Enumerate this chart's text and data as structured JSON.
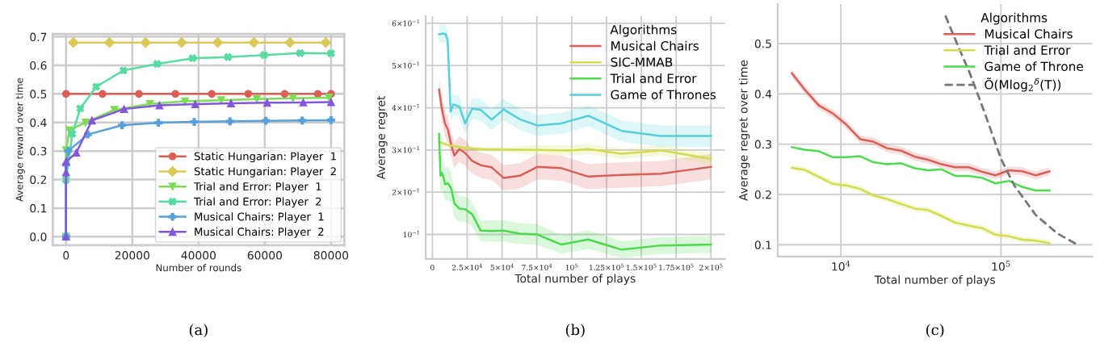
{
  "chart_data": [
    {
      "type": "line",
      "xlabel": "Number of rounds",
      "ylabel": "Average reward over time",
      "annotations": [
        "(a)"
      ],
      "xlim": [
        -4000,
        84000
      ],
      "ylim": [
        -0.03,
        0.71
      ],
      "xticks": [
        0,
        20000,
        40000,
        60000,
        80000
      ],
      "yticks": [
        {
          "value": 0,
          "label": "0.0"
        },
        0.1,
        0.2,
        0.3,
        0.4,
        0.5,
        0.6,
        0.7
      ],
      "grid": true,
      "legend": "lower right",
      "series": [
        {
          "name": "Static Hungarian: Player  1",
          "color": "#db5f57",
          "marker": "circle",
          "x": [
            0,
            11000,
            22000,
            33000,
            44000,
            55000,
            66000,
            76000,
            80000
          ],
          "values": [
            0.5,
            0.5,
            0.5,
            0.5,
            0.5,
            0.5,
            0.5,
            0.5,
            0.5
          ]
        },
        {
          "name": "Static Hungarian: Player  2",
          "color": "#dbc957",
          "marker": "diamond",
          "x": [
            2200,
            13100,
            24000,
            34900,
            45800,
            56700,
            67600,
            78400
          ],
          "values": [
            0.68,
            0.68,
            0.68,
            0.68,
            0.68,
            0.68,
            0.68,
            0.68
          ]
        },
        {
          "name": "Trial and Error: Player  1",
          "color": "#7ddb57",
          "marker": "triangle_down",
          "x": [
            0,
            0,
            1000,
            5900,
            14600,
            25300,
            35900,
            46800,
            57600,
            68500,
            79400
          ],
          "values": [
            0,
            0.303,
            0.373,
            0.4,
            0.444,
            0.465,
            0.474,
            0.478,
            0.482,
            0.485,
            0.487
          ]
        },
        {
          "name": "Trial and Error: Player  2",
          "color": "#57dba0",
          "marker": "cross",
          "x": [
            0,
            0,
            1900,
            4300,
            9100,
            17300,
            27500,
            38200,
            48900,
            59800,
            70700,
            80000
          ],
          "values": [
            0,
            0.199,
            0.36,
            0.449,
            0.525,
            0.582,
            0.605,
            0.625,
            0.629,
            0.636,
            0.643,
            0.642
          ]
        },
        {
          "name": "Musical Chairs: Player  1",
          "color": "#57a0db",
          "marker": "plus",
          "x": [
            0,
            0,
            650,
            6600,
            16900,
            27900,
            38700,
            49500,
            60300,
            71300,
            80000
          ],
          "values": [
            0,
            0.252,
            0.3,
            0.358,
            0.39,
            0.399,
            0.402,
            0.404,
            0.406,
            0.407,
            0.408
          ]
        },
        {
          "name": "Musical Chairs: Player  2",
          "color": "#8257db",
          "marker": "triangle",
          "x": [
            0,
            0,
            0,
            3100,
            7800,
            17500,
            28200,
            39000,
            49800,
            60700,
            71600,
            80000
          ],
          "values": [
            0,
            0.225,
            0.263,
            0.294,
            0.407,
            0.447,
            0.46,
            0.464,
            0.467,
            0.469,
            0.47,
            0.471
          ]
        }
      ]
    },
    {
      "type": "line",
      "xlabel": "Total number of plays",
      "ylabel": "Average regret",
      "legend_title": "Algorithms",
      "annotations": [
        "(b)"
      ],
      "xlim": [
        -4800,
        210000
      ],
      "ylim": [
        0.042,
        0.617
      ],
      "xticks": [
        0,
        {
          "value": 25000,
          "label": "2.5×10$^{4}$"
        },
        {
          "value": 50000,
          "label": "5×10$^{4}$"
        },
        {
          "value": 75000,
          "label": "7.5×10$^{4}$"
        },
        {
          "value": 100000,
          "label": "10$^{5}$"
        },
        {
          "value": 125000,
          "label": "1.25×10$^{5}$"
        },
        {
          "value": 150000,
          "label": "1.5×10$^{5}$"
        },
        {
          "value": 175000,
          "label": "1.75×10$^{5}$"
        },
        {
          "value": 200000,
          "label": "2×10$^{5}$"
        }
      ],
      "yticks": [
        {
          "value": 0.1,
          "label": "10$^{−1}$"
        },
        {
          "value": 0.2,
          "label": "2×10$^{−1}$"
        },
        {
          "value": 0.3,
          "label": "3×10$^{−1}$"
        },
        {
          "value": 0.4,
          "label": "4×10$^{−1}$"
        },
        {
          "value": 0.5,
          "label": "5×10$^{−1}$"
        },
        {
          "value": 0.6,
          "label": "6×10$^{−1}$"
        }
      ],
      "grid": true,
      "legend": "upper right",
      "series": [
        {
          "name": "Musical Chairs",
          "color": "#db5f57",
          "x": [
            4800,
            6800,
            9100,
            11200,
            13500,
            15800,
            19300,
            23500,
            28600,
            34700,
            42500,
            51100,
            62700,
            75300,
            92600,
            111900,
            136000,
            164000,
            200000
          ],
          "values": [
            0.443,
            0.398,
            0.362,
            0.348,
            0.312,
            0.287,
            0.302,
            0.293,
            0.274,
            0.264,
            0.259,
            0.234,
            0.239,
            0.26,
            0.257,
            0.237,
            0.241,
            0.244,
            0.26
          ],
          "lower": [
            0.413,
            0.368,
            0.332,
            0.318,
            0.282,
            0.257,
            0.272,
            0.263,
            0.244,
            0.234,
            0.229,
            0.204,
            0.209,
            0.23,
            0.227,
            0.207,
            0.211,
            0.214,
            0.23
          ],
          "upper": [
            0.473,
            0.428,
            0.392,
            0.378,
            0.342,
            0.317,
            0.332,
            0.323,
            0.304,
            0.294,
            0.289,
            0.264,
            0.269,
            0.29,
            0.287,
            0.267,
            0.271,
            0.274,
            0.29
          ]
        },
        {
          "name": "SIC-MMAB",
          "color": "#d4dc4e",
          "x": [
            4800,
            11600,
            23200,
            34700,
            50200,
            75300,
            98400,
            111900,
            136000,
            164000,
            200000
          ],
          "values": [
            0.319,
            0.311,
            0.305,
            0.302,
            0.301,
            0.3,
            0.299,
            0.302,
            0.291,
            0.299,
            0.279
          ],
          "lower": [
            0.314,
            0.306,
            0.3,
            0.297,
            0.296,
            0.288,
            0.287,
            0.29,
            0.279,
            0.287,
            0.265
          ],
          "upper": [
            0.324,
            0.316,
            0.31,
            0.307,
            0.306,
            0.312,
            0.311,
            0.314,
            0.303,
            0.311,
            0.293
          ]
        },
        {
          "name": "Trial and Error",
          "color": "#4ddb4e",
          "x": [
            4800,
            5800,
            6800,
            7700,
            9100,
            11200,
            13500,
            15800,
            19300,
            23500,
            28600,
            34700,
            42500,
            51100,
            62700,
            75300,
            92600,
            111900,
            136000,
            164000,
            200000
          ],
          "values": [
            0.338,
            0.239,
            0.246,
            0.239,
            0.219,
            0.221,
            0.209,
            0.174,
            0.161,
            0.16,
            0.148,
            0.109,
            0.108,
            0.109,
            0.102,
            0.1,
            0.076,
            0.088,
            0.064,
            0.074,
            0.076
          ],
          "lower": [
            0.288,
            0.199,
            0.206,
            0.199,
            0.179,
            0.181,
            0.174,
            0.139,
            0.131,
            0.13,
            0.118,
            0.084,
            0.083,
            0.084,
            0.077,
            0.075,
            0.054,
            0.066,
            0.044,
            0.054,
            0.056
          ],
          "upper": [
            0.388,
            0.279,
            0.286,
            0.279,
            0.259,
            0.261,
            0.244,
            0.209,
            0.191,
            0.19,
            0.178,
            0.134,
            0.133,
            0.134,
            0.127,
            0.125,
            0.098,
            0.11,
            0.084,
            0.094,
            0.096
          ]
        },
        {
          "name": "Game of Thrones",
          "color": "#57d0db",
          "x": [
            4800,
            7700,
            9600,
            11000,
            13100,
            15000,
            19300,
            23500,
            28600,
            34700,
            42500,
            51100,
            62700,
            75300,
            92600,
            111900,
            136000,
            164000,
            200000
          ],
          "values": [
            0.574,
            0.576,
            0.574,
            0.559,
            0.391,
            0.408,
            0.403,
            0.363,
            0.398,
            0.395,
            0.372,
            0.396,
            0.373,
            0.358,
            0.363,
            0.381,
            0.345,
            0.333,
            0.333
          ],
          "lower": [
            0.554,
            0.556,
            0.554,
            0.539,
            0.366,
            0.383,
            0.378,
            0.338,
            0.373,
            0.37,
            0.347,
            0.371,
            0.348,
            0.333,
            0.338,
            0.356,
            0.32,
            0.308,
            0.308
          ],
          "upper": [
            0.594,
            0.596,
            0.594,
            0.579,
            0.416,
            0.433,
            0.428,
            0.388,
            0.423,
            0.42,
            0.397,
            0.421,
            0.398,
            0.383,
            0.388,
            0.406,
            0.37,
            0.358,
            0.358
          ]
        }
      ]
    },
    {
      "type": "line",
      "xlabel": "Total number of plays",
      "ylabel": "Average regret over time",
      "legend_title": "Algorithms",
      "annotations": [
        "(c)"
      ],
      "log": "x",
      "xlim": [
        4030,
        372000
      ],
      "ylim": [
        0.0765,
        0.5785
      ],
      "xticks": [
        {
          "value": 10000,
          "label": "10$^{4}$"
        },
        {
          "value": 100000,
          "label": "10$^{5}$"
        }
      ],
      "yticks": [
        0.1,
        0.2,
        0.3,
        0.4,
        0.5
      ],
      "grid": true,
      "legend": "upper right",
      "x": [
        4940,
        5930,
        7280,
        8910,
        10800,
        13200,
        16000,
        19400,
        23800,
        29000,
        35100,
        42600,
        51700,
        62800,
        76200,
        92500,
        112000,
        136000,
        165000,
        201000
      ],
      "series": [
        {
          "name": "Musical Chairs",
          "color": "#db5f57",
          "values": [
            0.441,
            0.409,
            0.377,
            0.361,
            0.339,
            0.31,
            0.305,
            0.292,
            0.287,
            0.275,
            0.269,
            0.26,
            0.254,
            0.254,
            0.245,
            0.238,
            0.248,
            0.246,
            0.238,
            0.246
          ],
          "lower": [
            0.433,
            0.401,
            0.369,
            0.353,
            0.331,
            0.302,
            0.297,
            0.284,
            0.279,
            0.267,
            0.261,
            0.252,
            0.246,
            0.246,
            0.237,
            0.23,
            0.24,
            0.238,
            0.23,
            0.238
          ],
          "upper": [
            0.449,
            0.417,
            0.385,
            0.369,
            0.347,
            0.318,
            0.313,
            0.3,
            0.295,
            0.283,
            0.277,
            0.268,
            0.262,
            0.262,
            0.253,
            0.246,
            0.256,
            0.254,
            0.246,
            0.254
          ]
        },
        {
          "name": "Trial and Error",
          "color": "#d4dc4e",
          "values": [
            0.253,
            0.249,
            0.235,
            0.221,
            0.218,
            0.211,
            0.198,
            0.191,
            0.181,
            0.172,
            0.169,
            0.157,
            0.144,
            0.138,
            0.133,
            0.12,
            0.117,
            0.11,
            0.108,
            0.103
          ],
          "lower": [
            0.247,
            0.243,
            0.229,
            0.215,
            0.212,
            0.205,
            0.192,
            0.185,
            0.175,
            0.166,
            0.163,
            0.151,
            0.138,
            0.132,
            0.127,
            0.114,
            0.111,
            0.104,
            0.102,
            0.097
          ],
          "upper": [
            0.259,
            0.255,
            0.241,
            0.227,
            0.224,
            0.217,
            0.204,
            0.197,
            0.187,
            0.178,
            0.175,
            0.163,
            0.15,
            0.144,
            0.139,
            0.126,
            0.123,
            0.116,
            0.114,
            0.109
          ]
        },
        {
          "name": "Game of Throne",
          "color": "#4ddb4e",
          "values": [
            0.294,
            0.289,
            0.286,
            0.274,
            0.274,
            0.276,
            0.264,
            0.26,
            0.262,
            0.252,
            0.248,
            0.25,
            0.237,
            0.237,
            0.233,
            0.222,
            0.227,
            0.215,
            0.208,
            0.208
          ]
        },
        {
          "name": "Õ(Mlog$_{2}$$^{δ}$(T))",
          "color": "#777777",
          "line_style": "dashed",
          "x": [
            44900,
            53800,
            64100,
            79200,
            100000,
            121000,
            165000,
            226000,
            301000
          ],
          "values": [
            0.556,
            0.496,
            0.44,
            0.362,
            0.271,
            0.218,
            0.159,
            0.122,
            0.1
          ]
        }
      ]
    }
  ]
}
